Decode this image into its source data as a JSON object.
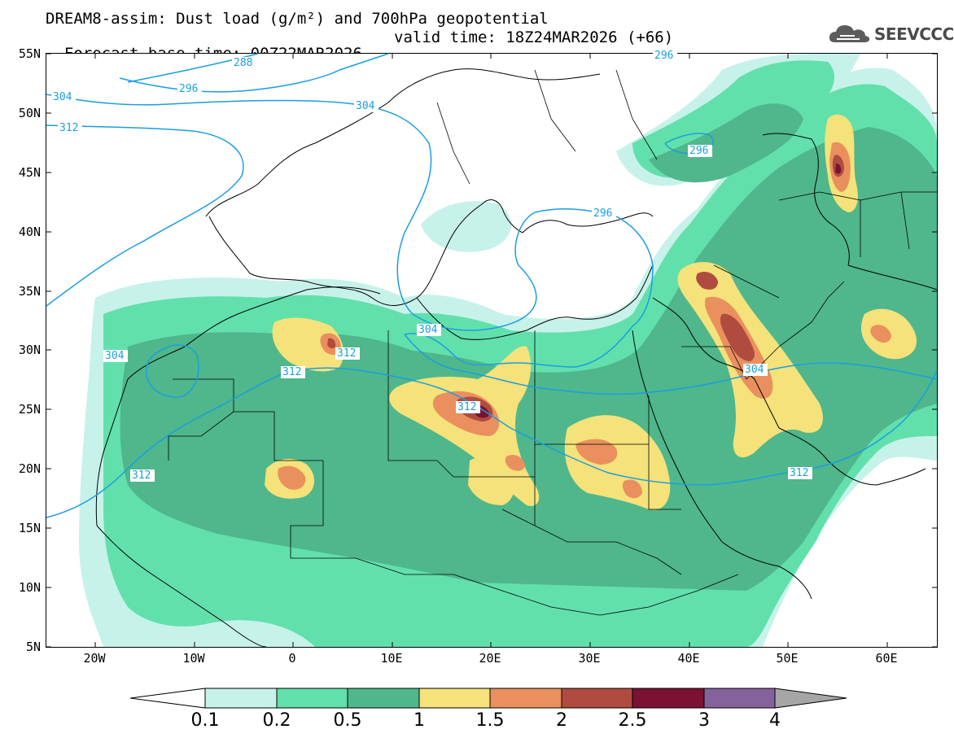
{
  "title_line1": "DREAM8-assim: Dust load (g/m²) and 700hPa geopotential",
  "title_line2": "Forecast base time: 00Z22MAR2026",
  "valid_time": "valid time: 18Z24MAR2026 (+66)",
  "logo_text": "SEEVCCC",
  "logo_icon": "cloud-icon",
  "lat_labels": [
    "55N",
    "50N",
    "45N",
    "40N",
    "35N",
    "30N",
    "25N",
    "20N",
    "15N",
    "10N",
    "5N"
  ],
  "lon_labels": [
    "20W",
    "10W",
    "0",
    "10E",
    "20E",
    "30E",
    "40E",
    "50E",
    "60E"
  ],
  "contour_labels": [
    "288",
    "296",
    "296",
    "296",
    "296",
    "304",
    "304",
    "304",
    "304",
    "304",
    "312",
    "312",
    "312",
    "312",
    "312",
    "312"
  ],
  "colorbar": {
    "values": [
      "0.1",
      "0.2",
      "0.5",
      "1",
      "1.5",
      "2",
      "2.5",
      "3",
      "4"
    ],
    "colors": [
      "#c7f2ea",
      "#62e0ab",
      "#4fb78b",
      "#f5e27a",
      "#e9905e",
      "#b04b40",
      "#7a1233",
      "#86629c",
      "#a6a6a6"
    ]
  },
  "colors": {
    "dust_01": "#c7f2ea",
    "dust_02": "#62e0ab",
    "dust_05": "#4fb78b",
    "dust_1": "#f5e27a",
    "dust_15": "#e9905e",
    "dust_2": "#b04b40",
    "dust_25": "#7a1233",
    "geopotential_line": "#1b9ee0",
    "border_line": "#000000"
  }
}
